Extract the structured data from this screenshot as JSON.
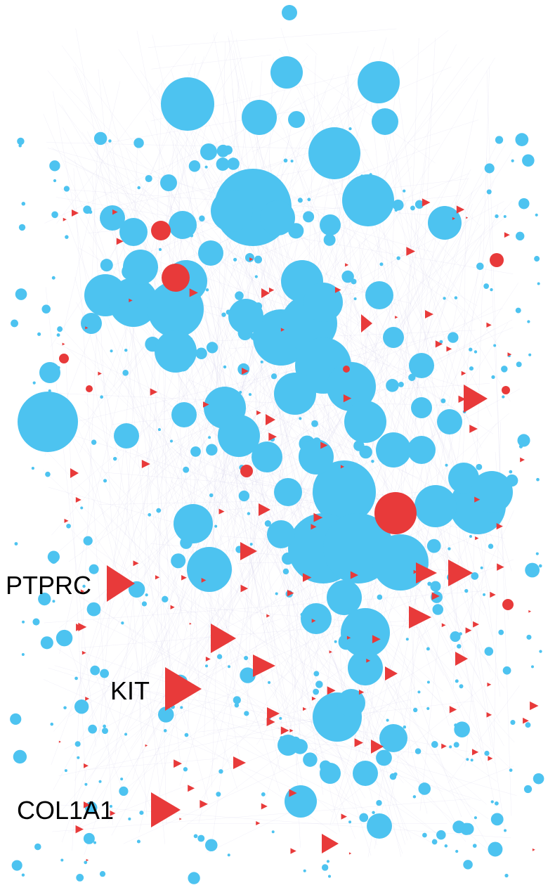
{
  "network": {
    "node_colors": {
      "default": "#4DC3F0",
      "highlight": "#E83A3A"
    },
    "edge_color": "#C9C6E6",
    "node_shapes": {
      "default": "circle",
      "highlight": "triangle"
    },
    "labeled_nodes": [
      {
        "label": "PTPRC",
        "shape": "triangle",
        "color": "#E83A3A"
      },
      {
        "label": "KIT",
        "shape": "triangle",
        "color": "#E83A3A"
      },
      {
        "label": "COL1A1",
        "shape": "triangle",
        "color": "#E83A3A"
      }
    ]
  }
}
